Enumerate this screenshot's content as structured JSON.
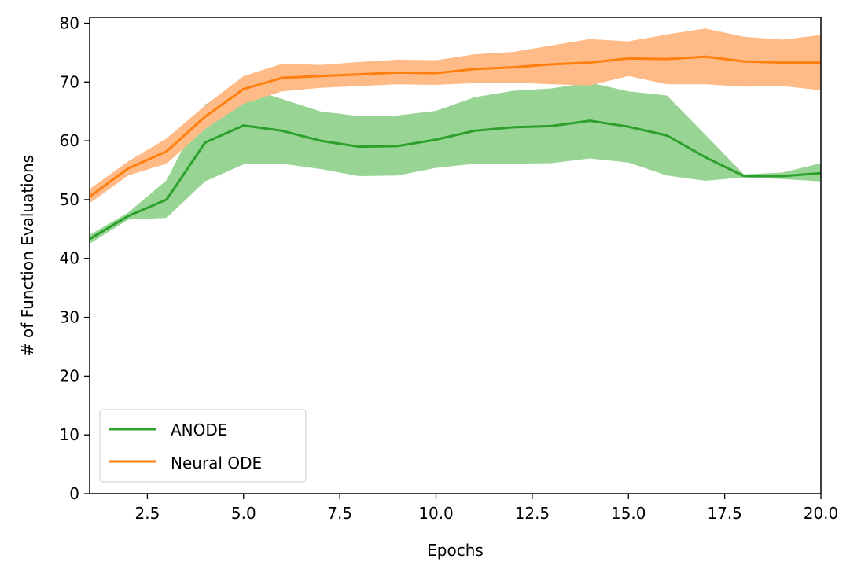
{
  "chart_data": {
    "type": "line",
    "title": "",
    "xlabel": "Epochs",
    "ylabel": "# of Function Evaluations",
    "xlim": [
      1,
      20
    ],
    "ylim": [
      0,
      81
    ],
    "x_ticks": [
      2.5,
      5.0,
      7.5,
      10.0,
      12.5,
      15.0,
      17.5,
      20.0
    ],
    "x_tick_labels": [
      "2.5",
      "5.0",
      "7.5",
      "10.0",
      "12.5",
      "15.0",
      "17.5",
      "20.0"
    ],
    "y_ticks": [
      0,
      10,
      20,
      30,
      40,
      50,
      60,
      70,
      80
    ],
    "y_tick_labels": [
      "0",
      "10",
      "20",
      "30",
      "40",
      "50",
      "60",
      "70",
      "80"
    ],
    "grid": false,
    "legend_position": "lower-left",
    "x": [
      1,
      2,
      3,
      4,
      5,
      6,
      7,
      8,
      9,
      10,
      11,
      12,
      13,
      14,
      15,
      16,
      17,
      18,
      19,
      20
    ],
    "series": [
      {
        "name": "ANODE",
        "color": "#2ca02c",
        "band_color": "#98d594",
        "values": [
          43.3,
          47.2,
          50.0,
          59.7,
          62.6,
          61.7,
          60.0,
          59.0,
          59.1,
          60.2,
          61.7,
          62.3,
          62.5,
          63.4,
          62.4,
          60.9,
          57.2,
          54.0,
          54.0,
          54.5
        ],
        "lower": [
          42.5,
          46.6,
          46.9,
          53.1,
          56.0,
          56.1,
          55.2,
          54.0,
          54.1,
          55.4,
          56.1,
          56.1,
          56.2,
          57.0,
          56.3,
          54.1,
          53.2,
          53.8,
          53.5,
          53.1
        ],
        "upper": [
          44.0,
          47.8,
          53.3,
          66.2,
          69.2,
          67.1,
          65.0,
          64.2,
          64.3,
          65.1,
          67.4,
          68.5,
          68.9,
          69.9,
          68.4,
          67.7,
          61.0,
          54.3,
          54.6,
          56.2
        ]
      },
      {
        "name": "Neural ODE",
        "color": "#ff7f0e",
        "band_color": "#ffbb87",
        "values": [
          50.5,
          55.3,
          58.2,
          64.1,
          68.8,
          70.7,
          71.0,
          71.3,
          71.6,
          71.5,
          72.2,
          72.5,
          73.0,
          73.3,
          74.0,
          73.9,
          74.3,
          73.5,
          73.3,
          73.3
        ],
        "lower": [
          49.4,
          54.1,
          56.1,
          62.0,
          66.3,
          68.4,
          69.0,
          69.3,
          69.6,
          69.5,
          69.8,
          69.9,
          69.6,
          69.4,
          71.0,
          69.6,
          69.6,
          69.2,
          69.3,
          68.6
        ],
        "upper": [
          51.8,
          56.5,
          60.4,
          66.0,
          71.0,
          73.1,
          72.9,
          73.4,
          73.8,
          73.7,
          74.7,
          75.1,
          76.2,
          77.3,
          76.9,
          78.1,
          79.1,
          77.7,
          77.2,
          78.0
        ]
      }
    ]
  }
}
